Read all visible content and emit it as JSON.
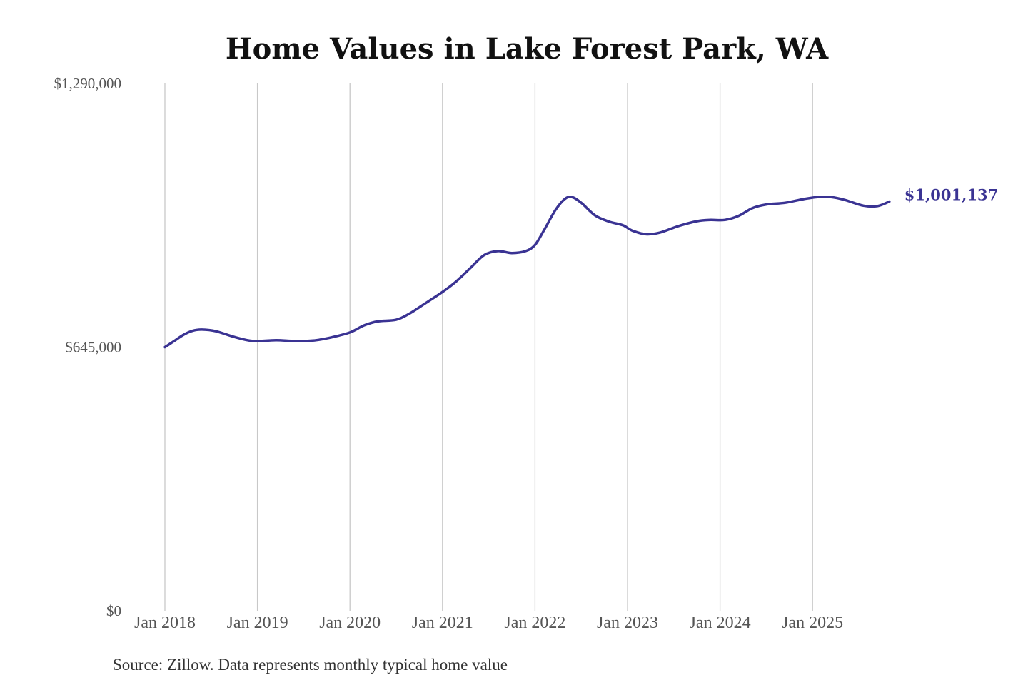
{
  "chart_data": {
    "type": "line",
    "title": "Home Values in Lake Forest Park, WA",
    "xlabel": "",
    "ylabel": "",
    "ylim": [
      0,
      1290000
    ],
    "y_ticks": [
      {
        "value": 0,
        "label": "$0"
      },
      {
        "value": 645000,
        "label": "$645,000"
      },
      {
        "value": 1290000,
        "label": "$1,290,000"
      }
    ],
    "x_ticks": [
      {
        "value": 2018.0,
        "label": "Jan 2018"
      },
      {
        "value": 2019.0,
        "label": "Jan 2019"
      },
      {
        "value": 2020.0,
        "label": "Jan 2020"
      },
      {
        "value": 2021.0,
        "label": "Jan 2021"
      },
      {
        "value": 2022.0,
        "label": "Jan 2022"
      },
      {
        "value": 2023.0,
        "label": "Jan 2023"
      },
      {
        "value": 2024.0,
        "label": "Jan 2024"
      },
      {
        "value": 2025.0,
        "label": "Jan 2025"
      }
    ],
    "xlim": [
      2018.0,
      2025.85
    ],
    "grid": "vertical",
    "legend": "none",
    "series": [
      {
        "color": "#3a3393",
        "end_label": "$1,001,137",
        "points": [
          [
            2018.0,
            645000
          ],
          [
            2018.1,
            660000
          ],
          [
            2018.2,
            675000
          ],
          [
            2018.3,
            685000
          ],
          [
            2018.4,
            688000
          ],
          [
            2018.55,
            684000
          ],
          [
            2018.75,
            670000
          ],
          [
            2018.95,
            660000
          ],
          [
            2019.2,
            662000
          ],
          [
            2019.4,
            660000
          ],
          [
            2019.6,
            661000
          ],
          [
            2019.8,
            669000
          ],
          [
            2020.0,
            681000
          ],
          [
            2020.15,
            698000
          ],
          [
            2020.3,
            708000
          ],
          [
            2020.5,
            712000
          ],
          [
            2020.65,
            728000
          ],
          [
            2020.8,
            750000
          ],
          [
            2021.0,
            780000
          ],
          [
            2021.15,
            806000
          ],
          [
            2021.3,
            838000
          ],
          [
            2021.45,
            870000
          ],
          [
            2021.6,
            880000
          ],
          [
            2021.75,
            875000
          ],
          [
            2021.9,
            880000
          ],
          [
            2022.0,
            895000
          ],
          [
            2022.1,
            932000
          ],
          [
            2022.22,
            980000
          ],
          [
            2022.32,
            1007000
          ],
          [
            2022.4,
            1012000
          ],
          [
            2022.5,
            998000
          ],
          [
            2022.65,
            967000
          ],
          [
            2022.8,
            952000
          ],
          [
            2022.95,
            943000
          ],
          [
            2023.05,
            930000
          ],
          [
            2023.2,
            921000
          ],
          [
            2023.35,
            925000
          ],
          [
            2023.55,
            941000
          ],
          [
            2023.75,
            953000
          ],
          [
            2023.9,
            956000
          ],
          [
            2024.05,
            956000
          ],
          [
            2024.2,
            966000
          ],
          [
            2024.35,
            985000
          ],
          [
            2024.5,
            994000
          ],
          [
            2024.7,
            998000
          ],
          [
            2024.9,
            1007000
          ],
          [
            2025.05,
            1012000
          ],
          [
            2025.2,
            1012000
          ],
          [
            2025.35,
            1005000
          ],
          [
            2025.55,
            991000
          ],
          [
            2025.7,
            990000
          ],
          [
            2025.83,
            1001137
          ]
        ]
      }
    ]
  },
  "footer": {
    "source": "Source: Zillow. Data represents monthly typical home value"
  }
}
